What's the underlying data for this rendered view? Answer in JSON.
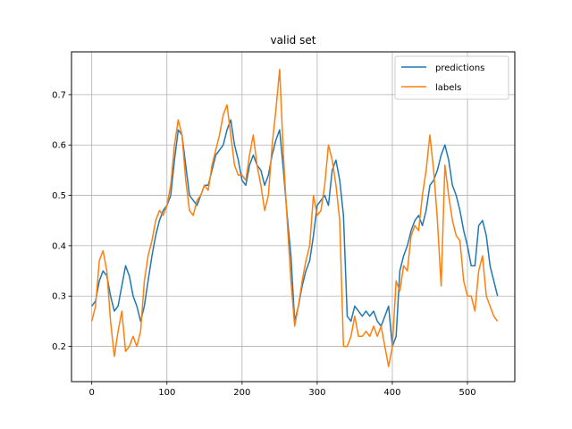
{
  "chart_data": {
    "type": "line",
    "title": "valid set",
    "xlabel": "",
    "ylabel": "",
    "xlim": [
      -27,
      563
    ],
    "ylim": [
      0.13,
      0.785
    ],
    "xticks": [
      0,
      100,
      200,
      300,
      400,
      500
    ],
    "yticks": [
      0.2,
      0.3,
      0.4,
      0.5,
      0.6,
      0.7
    ],
    "grid": true,
    "legend_position": "top-right",
    "series": [
      {
        "name": "predictions",
        "color": "#1f77b4",
        "x": [
          0,
          5,
          10,
          15,
          20,
          25,
          30,
          35,
          40,
          45,
          50,
          55,
          60,
          65,
          70,
          75,
          80,
          85,
          90,
          95,
          100,
          105,
          110,
          115,
          120,
          125,
          130,
          135,
          140,
          145,
          150,
          155,
          160,
          165,
          170,
          175,
          180,
          185,
          190,
          195,
          200,
          205,
          210,
          215,
          220,
          225,
          230,
          235,
          240,
          245,
          250,
          255,
          260,
          265,
          270,
          275,
          280,
          285,
          290,
          295,
          300,
          305,
          310,
          315,
          320,
          325,
          330,
          335,
          340,
          345,
          350,
          355,
          360,
          365,
          370,
          375,
          380,
          385,
          390,
          395,
          400,
          405,
          410,
          415,
          420,
          425,
          430,
          435,
          440,
          445,
          450,
          455,
          460,
          465,
          470,
          475,
          480,
          485,
          490,
          495,
          500,
          505,
          510,
          515,
          520,
          525,
          530,
          535,
          540
        ],
        "y": [
          0.28,
          0.29,
          0.33,
          0.35,
          0.34,
          0.3,
          0.27,
          0.28,
          0.32,
          0.36,
          0.34,
          0.3,
          0.28,
          0.25,
          0.28,
          0.33,
          0.38,
          0.42,
          0.45,
          0.47,
          0.48,
          0.5,
          0.57,
          0.63,
          0.62,
          0.56,
          0.5,
          0.49,
          0.48,
          0.5,
          0.52,
          0.52,
          0.55,
          0.58,
          0.59,
          0.6,
          0.63,
          0.65,
          0.6,
          0.57,
          0.53,
          0.52,
          0.56,
          0.58,
          0.56,
          0.55,
          0.52,
          0.54,
          0.58,
          0.61,
          0.63,
          0.55,
          0.46,
          0.38,
          0.25,
          0.28,
          0.32,
          0.35,
          0.37,
          0.42,
          0.48,
          0.49,
          0.5,
          0.48,
          0.55,
          0.57,
          0.53,
          0.46,
          0.26,
          0.25,
          0.28,
          0.27,
          0.26,
          0.27,
          0.26,
          0.27,
          0.25,
          0.24,
          0.26,
          0.28,
          0.2,
          0.22,
          0.35,
          0.38,
          0.4,
          0.43,
          0.45,
          0.46,
          0.44,
          0.47,
          0.52,
          0.53,
          0.55,
          0.58,
          0.6,
          0.57,
          0.52,
          0.5,
          0.47,
          0.43,
          0.4,
          0.36,
          0.36,
          0.44,
          0.45,
          0.42,
          0.36,
          0.33,
          0.3
        ]
      },
      {
        "name": "labels",
        "color": "#ff7f0e",
        "x": [
          0,
          5,
          10,
          15,
          20,
          25,
          30,
          35,
          40,
          45,
          50,
          55,
          60,
          65,
          70,
          75,
          80,
          85,
          90,
          95,
          100,
          105,
          110,
          115,
          120,
          125,
          130,
          135,
          140,
          145,
          150,
          155,
          160,
          165,
          170,
          175,
          180,
          185,
          190,
          195,
          200,
          205,
          210,
          215,
          220,
          225,
          230,
          235,
          240,
          245,
          250,
          255,
          260,
          265,
          270,
          275,
          280,
          285,
          290,
          295,
          300,
          305,
          310,
          315,
          320,
          325,
          330,
          335,
          340,
          345,
          350,
          355,
          360,
          365,
          370,
          375,
          380,
          385,
          390,
          395,
          400,
          405,
          410,
          415,
          420,
          425,
          430,
          435,
          440,
          445,
          450,
          455,
          460,
          465,
          470,
          475,
          480,
          485,
          490,
          495,
          500,
          505,
          510,
          515,
          520,
          525,
          530,
          535,
          540
        ],
        "y": [
          0.25,
          0.28,
          0.37,
          0.39,
          0.35,
          0.25,
          0.18,
          0.23,
          0.27,
          0.19,
          0.2,
          0.22,
          0.2,
          0.23,
          0.33,
          0.38,
          0.41,
          0.45,
          0.47,
          0.46,
          0.48,
          0.52,
          0.6,
          0.65,
          0.62,
          0.53,
          0.47,
          0.46,
          0.49,
          0.5,
          0.52,
          0.51,
          0.56,
          0.59,
          0.62,
          0.66,
          0.68,
          0.62,
          0.56,
          0.54,
          0.54,
          0.53,
          0.58,
          0.62,
          0.56,
          0.52,
          0.47,
          0.5,
          0.6,
          0.67,
          0.75,
          0.58,
          0.45,
          0.33,
          0.24,
          0.28,
          0.33,
          0.37,
          0.4,
          0.5,
          0.46,
          0.47,
          0.52,
          0.6,
          0.57,
          0.52,
          0.45,
          0.2,
          0.2,
          0.22,
          0.26,
          0.22,
          0.22,
          0.23,
          0.22,
          0.24,
          0.22,
          0.24,
          0.2,
          0.16,
          0.2,
          0.33,
          0.31,
          0.36,
          0.35,
          0.42,
          0.44,
          0.43,
          0.5,
          0.55,
          0.62,
          0.55,
          0.45,
          0.32,
          0.56,
          0.5,
          0.45,
          0.42,
          0.41,
          0.33,
          0.3,
          0.3,
          0.27,
          0.35,
          0.38,
          0.3,
          0.28,
          0.26,
          0.25
        ]
      }
    ]
  }
}
